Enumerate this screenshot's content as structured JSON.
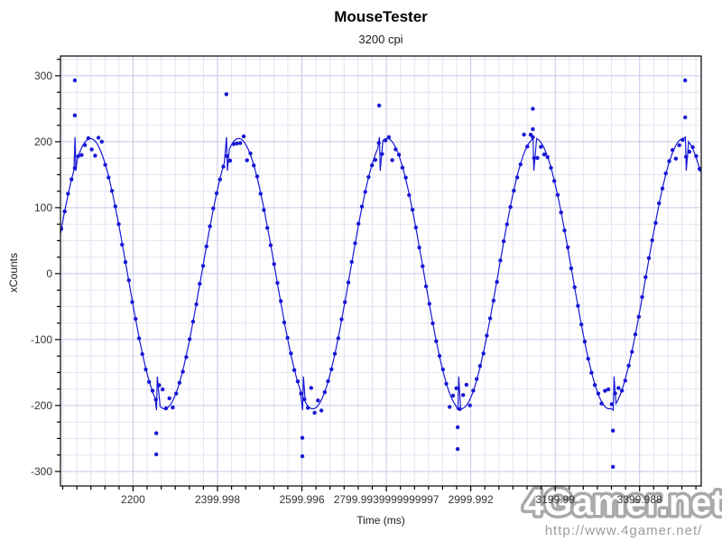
{
  "header": {
    "title": "MouseTester",
    "subtitle": "3200 cpi"
  },
  "watermark": {
    "logo_text": "4Gamer.net",
    "url_text": "http://www.4gamer.net/"
  },
  "chart_data": {
    "type": "scatter",
    "title": "MouseTester",
    "subtitle": "3200 cpi",
    "xlabel": "Time (ms)",
    "ylabel": "xCounts",
    "xlim": [
      2028,
      3546
    ],
    "ylim": [
      -322,
      330
    ],
    "x_major_ticks": [
      2200,
      2400,
      2600,
      2800,
      3000,
      3200,
      3400
    ],
    "x_minor_step": 33.333,
    "y_major_ticks": [
      -300,
      -200,
      -100,
      0,
      100,
      200,
      300
    ],
    "y_minor_step": 25,
    "grid": {
      "minor_color": "#e3e3f3",
      "major_color": "#c7c7e6",
      "on": true
    },
    "legend": "none",
    "noise_seed": 42,
    "series": {
      "name": "xCounts",
      "color": "#1717d6",
      "marker": "dot",
      "wave": {
        "shape": "sine",
        "amplitude_counts": 205,
        "period_ms": 351.2,
        "first_peak_ms": 2099,
        "sample_interval_ms": 8
      },
      "plateau_scatter": {
        "threshold": 0.88,
        "low_factor": 0.82,
        "high_factor": 1.0
      },
      "outliers": [
        {
          "t": 2062,
          "values": [
            293,
            240
          ]
        },
        {
          "t": 2255,
          "values": [
            -242,
            -274
          ]
        },
        {
          "t": 2421,
          "values": [
            272
          ]
        },
        {
          "t": 2601,
          "values": [
            -249,
            -277
          ]
        },
        {
          "t": 2783,
          "values": [
            255
          ]
        },
        {
          "t": 2969,
          "values": [
            -233,
            -266
          ]
        },
        {
          "t": 3147,
          "values": [
            250,
            219,
            207
          ]
        },
        {
          "t": 3337,
          "values": [
            -238,
            -293
          ]
        },
        {
          "t": 3508,
          "values": [
            293,
            237
          ]
        }
      ],
      "line_glitches": [
        2062,
        2255,
        2421,
        2601,
        2783,
        2969,
        3147,
        3337,
        3508
      ],
      "glitch_spike_counts": 207,
      "glitch_dip_counts": 156
    }
  }
}
